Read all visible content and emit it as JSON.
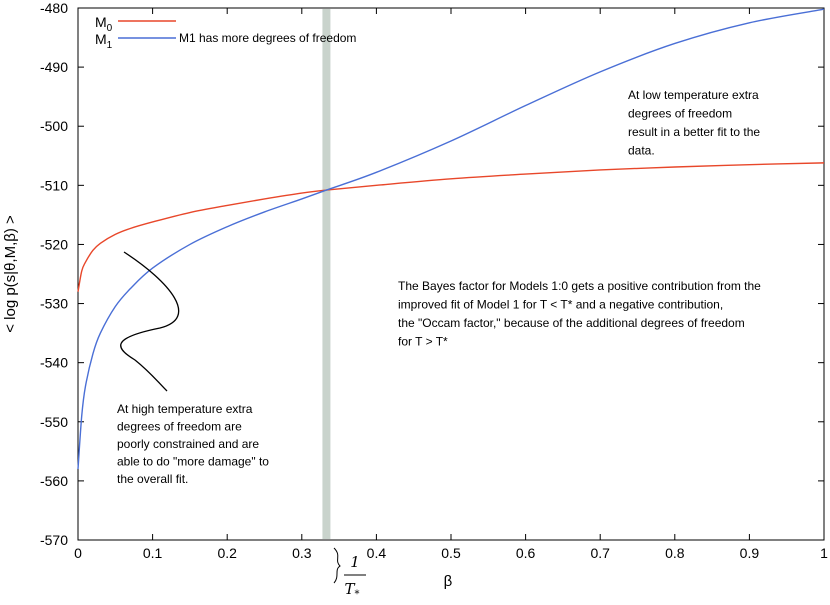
{
  "chart_data": {
    "type": "line",
    "xlabel": "β",
    "ylabel": "< log p(s|θ,M,β) >",
    "xlim": [
      0,
      1
    ],
    "ylim": [
      -570,
      -480
    ],
    "x_ticks": [
      "0",
      "0.1",
      "0.2",
      "0.3",
      "0.4",
      "0.5",
      "0.6",
      "0.7",
      "0.8",
      "0.9",
      "1"
    ],
    "y_ticks": [
      "-480",
      "-490",
      "-500",
      "-510",
      "-520",
      "-530",
      "-540",
      "-550",
      "-560",
      "-570"
    ],
    "grid": false,
    "legend_position": "top-left",
    "series": [
      {
        "name": "M0",
        "color": "#e8472a",
        "x": [
          0.0,
          0.005,
          0.01,
          0.02,
          0.03,
          0.05,
          0.07,
          0.1,
          0.15,
          0.2,
          0.25,
          0.3,
          0.333,
          0.4,
          0.5,
          0.6,
          0.7,
          0.8,
          0.9,
          1.0
        ],
        "y": [
          -528,
          -524.5,
          -523,
          -521,
          -519.8,
          -518.3,
          -517.3,
          -516.2,
          -514.6,
          -513.4,
          -512.3,
          -511.3,
          -510.8,
          -510.0,
          -508.9,
          -508.1,
          -507.4,
          -506.9,
          -506.5,
          -506.2
        ]
      },
      {
        "name": "M1",
        "color": "#4a6fd6",
        "x": [
          0.0,
          0.005,
          0.01,
          0.02,
          0.03,
          0.05,
          0.07,
          0.1,
          0.15,
          0.2,
          0.25,
          0.3,
          0.333,
          0.4,
          0.5,
          0.6,
          0.7,
          0.8,
          0.9,
          1.0
        ],
        "y": [
          -558,
          -549,
          -544,
          -538.5,
          -535,
          -530.5,
          -527.5,
          -524,
          -520,
          -517,
          -514.5,
          -512.3,
          -510.8,
          -507.8,
          -502.5,
          -496.5,
          -490.8,
          -486,
          -482.5,
          -480.2
        ]
      }
    ],
    "legend": {
      "m0_base": "M",
      "m0_sub": "0",
      "m1_base": "M",
      "m1_sub": "1",
      "m1_note": "M1 has more degrees of freedom"
    },
    "marker": {
      "x": 0.333,
      "label_num": "1",
      "label_den": "T",
      "label_den_sub": "*",
      "color": "#c9d3cc"
    },
    "annotations": {
      "low_temp": [
        "At low temperature extra",
        "degrees of freedom",
        "result in a better fit to the",
        "data."
      ],
      "bayes": [
        "The Bayes factor for Models 1:0 gets a positive contribution from the",
        "improved fit of Model 1 for T <  T* and a negative contribution,",
        "the \"Occam factor,\"  because of the additional degrees of freedom",
        "for T > T*"
      ],
      "high_temp": [
        "At high temperature extra",
        "degrees of freedom are",
        "poorly constrained and are",
        "able to do \"more damage\" to",
        "the overall fit."
      ]
    }
  }
}
